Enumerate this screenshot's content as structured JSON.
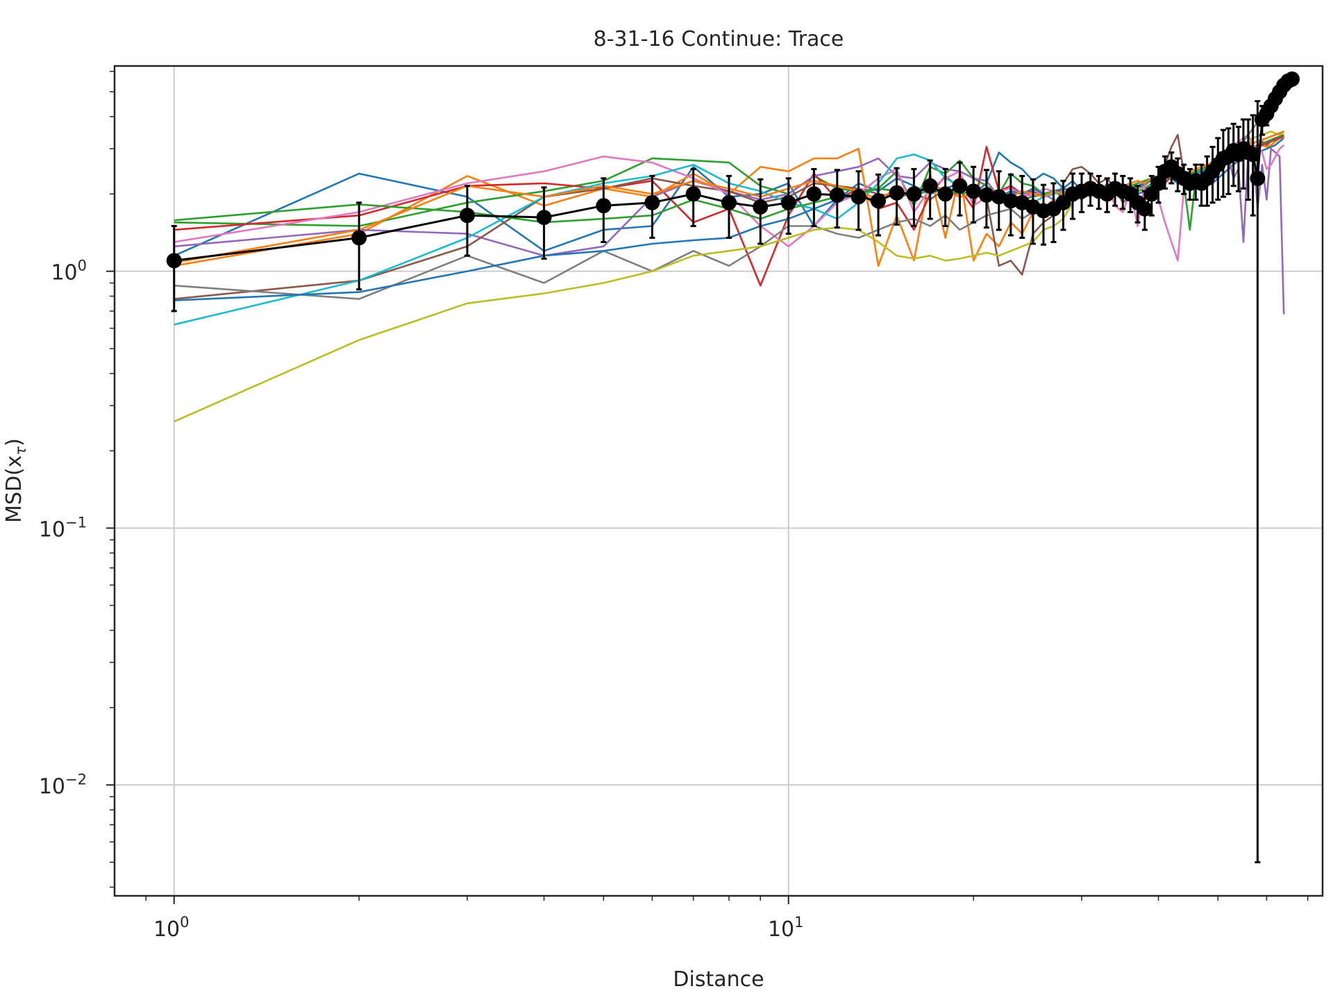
{
  "chart_data": {
    "type": "line",
    "title": "8-31-16 Continue: Trace",
    "xlabel": "Distance",
    "ylabel": "MSD(x",
    "ylabel_sub": "τ",
    "ylabel_close": ")",
    "xscale": "log",
    "yscale": "log",
    "xlim": [
      0.8,
      74
    ],
    "ylim": [
      0.0037,
      6.3
    ],
    "grid": true,
    "x_ticks": [
      {
        "value": 1,
        "base": "10",
        "exp": "0"
      },
      {
        "value": 10,
        "base": "10",
        "exp": "1"
      }
    ],
    "y_ticks": [
      {
        "value": 1,
        "base": "10",
        "exp": "0"
      },
      {
        "value": 0.1,
        "base": "10",
        "exp": "−1"
      },
      {
        "value": 0.01,
        "base": "10",
        "exp": "−2"
      }
    ],
    "colors": [
      "#1f77b4",
      "#ff7f0e",
      "#2ca02c",
      "#d62728",
      "#9467bd",
      "#8c564b",
      "#e377c2",
      "#7f7f7f",
      "#bcbd22",
      "#17becf",
      "#1f77b4",
      "#2ca02c",
      "#ff7f0e"
    ],
    "series": [
      {
        "color": "#1f77b4",
        "values": [
          1.15,
          2.4,
          1.95,
          1.2,
          1.45,
          1.5,
          2.55,
          1.95,
          2.0,
          2.2,
          1.5,
          1.9,
          2.2,
          2.05,
          2.3,
          2.15,
          2.0,
          2.1,
          2.2,
          2.0,
          2.2,
          2.9,
          2.65,
          2.5,
          2.25,
          2.4,
          2.3,
          2.1,
          2.25,
          2.05,
          2.1,
          2.0,
          2.2,
          2.05,
          1.95,
          1.95,
          2.0,
          2.05,
          2.15,
          2.1,
          2.25,
          2.3,
          2.2,
          2.2,
          2.3,
          2.2,
          2.25,
          2.35,
          2.2,
          2.3,
          2.4,
          2.5,
          2.6,
          2.7,
          2.85,
          2.95,
          2.75,
          2.9,
          2.95,
          3.0,
          3.05,
          3.1,
          3.2,
          3.3
        ]
      },
      {
        "color": "#ff7f0e",
        "values": [
          1.05,
          1.4,
          2.35,
          1.8,
          2.1,
          1.95,
          2.4,
          2.0,
          2.55,
          2.45,
          2.75,
          2.75,
          3.0,
          1.05,
          1.65,
          1.1,
          2.4,
          1.35,
          2.4,
          1.1,
          1.4,
          1.25,
          1.55,
          1.4,
          1.7,
          1.75,
          1.9,
          1.85,
          1.95,
          2.0,
          2.05,
          2.1,
          2.0,
          2.1,
          1.95,
          2.0,
          2.1,
          2.2,
          2.3,
          2.25,
          2.4,
          2.35,
          2.3,
          2.25,
          2.2,
          2.3,
          2.35,
          2.4,
          2.5,
          2.6,
          2.7,
          2.8,
          2.9,
          3.0,
          3.1,
          3.2,
          3.05,
          3.0,
          3.1,
          3.05,
          3.1,
          3.2,
          3.3,
          3.3
        ]
      },
      {
        "color": "#2ca02c",
        "values": [
          1.55,
          1.5,
          1.85,
          2.05,
          2.25,
          2.75,
          2.7,
          2.65,
          2.15,
          2.0,
          2.35,
          2.1,
          2.05,
          2.1,
          2.45,
          1.8,
          2.55,
          2.4,
          2.7,
          2.3,
          2.15,
          2.0,
          2.4,
          2.2,
          2.15,
          2.0,
          2.05,
          1.95,
          2.0,
          1.9,
          2.05,
          2.0,
          1.95,
          2.1,
          1.9,
          2.2,
          2.05,
          2.1,
          2.2,
          2.15,
          2.3,
          2.45,
          2.5,
          2.2,
          1.45,
          2.3,
          2.5,
          2.6,
          2.4,
          2.55,
          2.8,
          2.9,
          3.0,
          3.1,
          3.15,
          3.2,
          3.05,
          3.1,
          3.15,
          3.2,
          3.25,
          3.3,
          3.35,
          3.4
        ]
      },
      {
        "color": "#d62728",
        "values": [
          1.45,
          1.65,
          2.15,
          2.2,
          2.1,
          2.25,
          1.55,
          1.75,
          0.88,
          1.65,
          2.4,
          1.9,
          2.1,
          1.75,
          1.85,
          1.45,
          2.0,
          2.35,
          2.1,
          1.75,
          3.05,
          2.05,
          2.15,
          2.0,
          2.05,
          1.95,
          2.0,
          2.1,
          2.05,
          2.0,
          2.15,
          2.05,
          2.0,
          2.1,
          2.05,
          2.15,
          2.1,
          2.2,
          2.25,
          2.3,
          2.2,
          2.35,
          2.4,
          2.3,
          2.2,
          2.3,
          2.35,
          2.4,
          2.5,
          2.55,
          2.6,
          2.7,
          2.8,
          2.9,
          3.0,
          3.1,
          3.0,
          3.05,
          3.1,
          3.15,
          3.2,
          3.25,
          3.3,
          3.35
        ]
      },
      {
        "color": "#9467bd",
        "values": [
          1.25,
          1.45,
          1.4,
          1.15,
          1.25,
          1.95,
          2.25,
          2.05,
          1.9,
          2.0,
          2.35,
          2.45,
          2.55,
          2.75,
          2.35,
          2.3,
          2.65,
          2.5,
          2.45,
          2.3,
          2.25,
          1.95,
          2.0,
          2.05,
          1.95,
          2.0,
          1.9,
          1.85,
          2.0,
          2.1,
          2.05,
          2.0,
          1.95,
          2.1,
          1.9,
          2.2,
          2.1,
          2.15,
          2.3,
          2.2,
          2.35,
          2.4,
          2.3,
          2.25,
          2.2,
          2.3,
          2.4,
          2.5,
          2.35,
          2.5,
          2.7,
          2.8,
          2.3,
          2.5,
          1.3,
          2.9,
          3.0,
          1.75,
          2.6,
          1.9,
          3.0,
          2.9,
          2.8,
          0.68
        ]
      },
      {
        "color": "#8c564b",
        "values": [
          0.78,
          0.92,
          1.25,
          1.95,
          2.1,
          2.3,
          2.15,
          2.05,
          1.85,
          1.95,
          2.2,
          2.15,
          2.1,
          2.0,
          1.95,
          2.0,
          1.9,
          2.1,
          1.95,
          2.0,
          1.95,
          1.05,
          1.1,
          0.97,
          1.4,
          1.55,
          1.65,
          2.2,
          2.5,
          2.55,
          2.4,
          2.2,
          2.3,
          2.1,
          1.85,
          1.95,
          2.1,
          2.2,
          2.3,
          2.2,
          2.6,
          3.05,
          3.4,
          2.4,
          2.3,
          2.25,
          2.3,
          2.4,
          2.55,
          2.5,
          2.65,
          2.8,
          2.9,
          3.05,
          3.1,
          3.2,
          3.0,
          3.1,
          3.2,
          3.1,
          3.2,
          3.3,
          3.3,
          3.4
        ]
      },
      {
        "color": "#e377c2",
        "values": [
          1.3,
          1.7,
          2.2,
          2.45,
          2.8,
          2.65,
          2.3,
          2.0,
          1.5,
          1.25,
          1.5,
          1.85,
          2.0,
          2.3,
          2.5,
          1.7,
          2.1,
          2.3,
          2.45,
          1.8,
          1.95,
          2.05,
          2.1,
          2.0,
          1.95,
          2.1,
          2.05,
          2.0,
          1.95,
          2.0,
          2.1,
          2.05,
          2.15,
          1.8,
          1.7,
          2.05,
          1.5,
          2.2,
          2.3,
          1.9,
          1.55,
          1.3,
          1.1,
          2.1,
          2.2,
          2.3,
          2.4,
          2.5,
          2.5,
          2.6,
          2.8,
          2.9,
          3.1,
          3.2,
          3.3,
          3.4,
          3.1,
          3.0,
          2.9,
          2.5,
          2.6,
          2.8,
          3.0,
          3.1
        ]
      },
      {
        "color": "#7f7f7f",
        "values": [
          0.88,
          0.78,
          1.15,
          0.9,
          1.2,
          1.0,
          1.2,
          1.05,
          1.25,
          1.5,
          1.5,
          1.4,
          1.35,
          1.45,
          1.55,
          1.6,
          1.5,
          1.65,
          1.45,
          1.55,
          1.65,
          1.7,
          1.75,
          1.6,
          1.7,
          1.8,
          1.75,
          1.85,
          1.9,
          2.0,
          1.95,
          2.05,
          2.1,
          2.0,
          2.15,
          2.1,
          2.2,
          2.25,
          2.3,
          2.25,
          2.4,
          2.35,
          2.3,
          2.4,
          2.35,
          2.45,
          2.5,
          2.6,
          2.55,
          2.7,
          2.8,
          2.9,
          3.0,
          3.1,
          3.2,
          3.4,
          3.6,
          3.8,
          4.0,
          4.3,
          4.6,
          5.0,
          5.4,
          5.6
        ]
      },
      {
        "color": "#bcbd22",
        "values": [
          0.26,
          0.54,
          0.75,
          0.82,
          0.9,
          1.0,
          1.15,
          1.2,
          1.25,
          1.35,
          1.45,
          1.48,
          1.45,
          1.3,
          1.15,
          1.12,
          1.15,
          1.1,
          1.12,
          1.15,
          1.18,
          1.15,
          1.2,
          1.25,
          1.3,
          1.45,
          1.5,
          1.6,
          1.85,
          2.0,
          2.05,
          2.1,
          2.05,
          2.1,
          2.15,
          2.2,
          2.1,
          2.25,
          2.3,
          2.2,
          2.4,
          2.3,
          2.35,
          2.3,
          2.25,
          2.35,
          2.4,
          2.5,
          2.55,
          2.6,
          2.7,
          2.8,
          2.9,
          3.0,
          3.1,
          3.2,
          3.3,
          3.35,
          3.4,
          3.45,
          3.5,
          3.45,
          3.4,
          3.5
        ]
      },
      {
        "color": "#17becf",
        "values": [
          0.62,
          0.92,
          1.35,
          1.95,
          2.2,
          2.35,
          2.6,
          2.2,
          2.05,
          1.85,
          1.75,
          1.6,
          1.85,
          2.2,
          2.75,
          2.85,
          2.7,
          2.3,
          2.15,
          2.05,
          2.0,
          1.95,
          2.0,
          1.9,
          1.85,
          1.95,
          2.0,
          2.05,
          2.0,
          2.1,
          2.05,
          2.0,
          2.1,
          2.05,
          2.0,
          2.1,
          2.15,
          2.2,
          2.25,
          2.3,
          2.35,
          2.3,
          2.25,
          2.35,
          2.3,
          2.4,
          2.45,
          2.5,
          2.55,
          2.6,
          2.7,
          2.8,
          2.9,
          3.0,
          3.05,
          3.1,
          3.15,
          3.2,
          3.25,
          3.3,
          3.35,
          3.4,
          3.45,
          3.5
        ]
      },
      {
        "color": "#1f77b4",
        "values": [
          0.77,
          0.83,
          1.0,
          1.15,
          1.2,
          1.28,
          1.32,
          1.35,
          1.5,
          1.6,
          1.75,
          1.9,
          2.0,
          2.1,
          2.05,
          1.95,
          2.1,
          2.0,
          2.05,
          2.1,
          2.0,
          1.95,
          2.05,
          2.0,
          2.1,
          2.0,
          2.05,
          2.1,
          2.05,
          2.0,
          2.1,
          2.05,
          2.0,
          2.1,
          2.05,
          2.1,
          2.15,
          2.2,
          2.25,
          2.3,
          2.35,
          2.3,
          2.25,
          2.3,
          2.35,
          2.4,
          2.45,
          2.5,
          2.55,
          2.6,
          2.7,
          2.8,
          2.9,
          3.0,
          3.05,
          3.1,
          3.15,
          3.2,
          3.25,
          3.3,
          3.35,
          3.4,
          3.45,
          3.5
        ]
      },
      {
        "color": "#2ca02c",
        "values": [
          1.58,
          1.82,
          1.7,
          1.55,
          1.6,
          1.65,
          1.9,
          1.75,
          1.6,
          1.75,
          1.85,
          1.95,
          2.0,
          2.1,
          2.05,
          2.0,
          2.05,
          2.1,
          2.0,
          2.05,
          2.0,
          1.95,
          2.0,
          1.9,
          1.95,
          2.0,
          2.05,
          2.0,
          1.95,
          2.0,
          2.05,
          2.1,
          2.0,
          2.05,
          2.1,
          2.15,
          2.2,
          2.25,
          2.3,
          2.35,
          2.4,
          2.35,
          2.3,
          2.35,
          2.4,
          2.45,
          2.5,
          2.55,
          2.6,
          2.65,
          2.7,
          2.8,
          2.9,
          3.0,
          3.05,
          3.1,
          3.15,
          3.2,
          3.25,
          3.3,
          3.35,
          3.4,
          3.45,
          3.5
        ]
      },
      {
        "color": "#ff7f0e",
        "values": [
          1.08,
          1.45,
          2.15,
          1.95,
          2.15,
          2.0,
          2.25,
          2.1,
          1.95,
          2.1,
          2.25,
          2.15,
          2.05,
          1.9,
          2.1,
          1.95,
          2.2,
          2.05,
          1.95,
          2.0,
          2.1,
          2.0,
          1.95,
          2.05,
          2.0,
          1.95,
          2.05,
          2.0,
          2.1,
          2.05,
          2.0,
          2.1,
          2.05,
          2.1,
          2.15,
          2.2,
          2.25,
          2.2,
          2.3,
          2.25,
          2.35,
          2.3,
          2.35,
          2.4,
          2.45,
          2.5,
          2.55,
          2.6,
          2.65,
          2.7,
          2.75,
          2.85,
          2.95,
          3.0,
          3.05,
          3.1,
          3.15,
          3.2,
          3.25,
          3.3,
          3.35,
          3.4,
          3.45,
          3.5
        ]
      }
    ],
    "mean_series": {
      "color": "#000000",
      "x": [
        1,
        2,
        3,
        4,
        5,
        6,
        7,
        8,
        9,
        10,
        11,
        12,
        13,
        14,
        15,
        16,
        17,
        18,
        19,
        20,
        21,
        22,
        23,
        24,
        25,
        26,
        27,
        28,
        29,
        30,
        31,
        32,
        33,
        34,
        35,
        36,
        37,
        38,
        39,
        40,
        41,
        42,
        43,
        44,
        45,
        46,
        47,
        48,
        49,
        50,
        51,
        52,
        53,
        54,
        55,
        56,
        57,
        58,
        59,
        60,
        61,
        62,
        63,
        64,
        65,
        66
      ],
      "values": [
        1.1,
        1.35,
        1.65,
        1.62,
        1.8,
        1.85,
        2.0,
        1.85,
        1.78,
        1.85,
        2.0,
        1.98,
        1.95,
        1.88,
        2.02,
        2.0,
        2.15,
        2.0,
        2.15,
        2.05,
        1.98,
        1.95,
        1.88,
        1.85,
        1.78,
        1.72,
        1.75,
        1.85,
        2.0,
        2.05,
        2.1,
        2.05,
        2.0,
        2.1,
        2.05,
        2.0,
        1.85,
        1.75,
        2.0,
        2.2,
        2.45,
        2.55,
        2.4,
        2.3,
        2.2,
        2.25,
        2.2,
        2.3,
        2.45,
        2.6,
        2.75,
        2.8,
        2.95,
        2.85,
        3.0,
        2.9,
        2.85,
        2.3,
        3.9,
        4.1,
        4.4,
        4.7,
        5.0,
        5.3,
        5.5,
        5.6
      ],
      "errors": [
        0.4,
        0.5,
        0.5,
        0.5,
        0.5,
        0.5,
        0.5,
        0.5,
        0.5,
        0.45,
        0.5,
        0.5,
        0.5,
        0.5,
        0.5,
        0.5,
        0.55,
        0.5,
        0.5,
        0.5,
        0.5,
        0.5,
        0.5,
        0.5,
        0.5,
        0.45,
        0.45,
        0.4,
        0.4,
        0.35,
        0.3,
        0.3,
        0.3,
        0.3,
        0.3,
        0.3,
        0.3,
        0.3,
        0.35,
        0.35,
        0.35,
        0.35,
        0.35,
        0.3,
        0.3,
        0.35,
        0.4,
        0.5,
        0.6,
        0.7,
        0.8,
        0.8,
        0.8,
        0.8,
        0.9,
        1.0,
        1.2,
        2.295,
        0.5,
        0.4,
        0.3,
        0.3,
        0.2,
        0.2,
        0.1,
        0.1
      ]
    }
  }
}
